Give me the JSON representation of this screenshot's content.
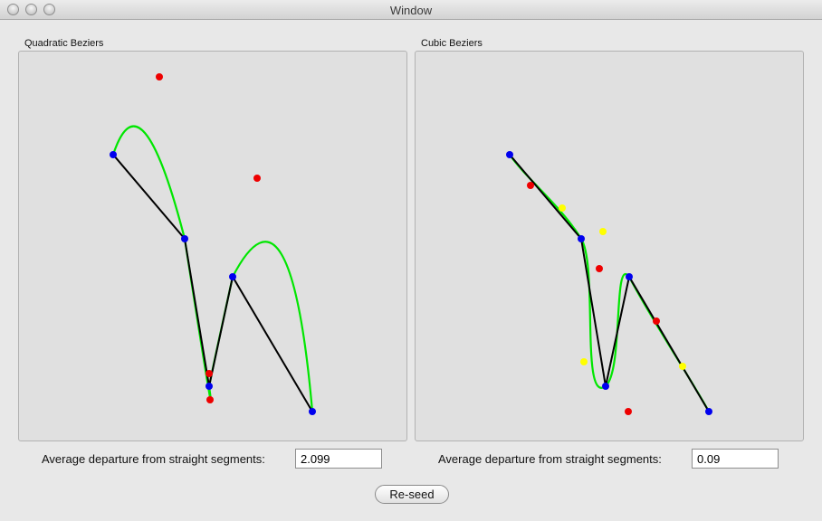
{
  "window": {
    "title": "Window"
  },
  "left_panel": {
    "label": "Quadratic Beziers",
    "stat_label": "Average departure from straight segments:",
    "stat_value": "2.099"
  },
  "right_panel": {
    "label": "Cubic Beziers",
    "stat_label": "Average departure from straight segments:",
    "stat_value": "0.09"
  },
  "reseed_button": "Re-seed",
  "colors": {
    "curve": "#00e600",
    "segment": "#000000",
    "anchor": "#0000ee",
    "control": "#ee0000",
    "control2": "#ffff00"
  }
}
